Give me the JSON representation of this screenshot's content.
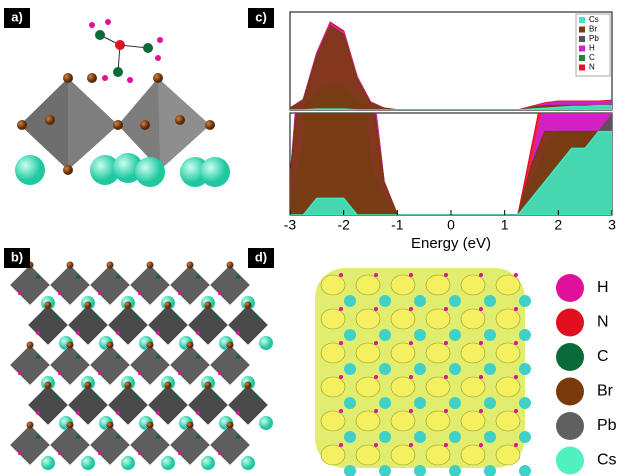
{
  "panels": {
    "a": "a)",
    "b": "b)",
    "c": "c)",
    "d": "d)"
  },
  "chart_data": {
    "type": "area",
    "xlabel": "Energy (eV)",
    "x": [
      -3,
      -2.75,
      -2.5,
      -2.25,
      -2,
      -1.75,
      -1.5,
      -1.25,
      -1,
      -0.75,
      -0.5,
      -0.25,
      0,
      0.25,
      0.5,
      0.75,
      1,
      1.25,
      1.5,
      1.75,
      2,
      2.25,
      2.5,
      2.75,
      3
    ],
    "xlim": [
      -3,
      3
    ],
    "xticks": [
      -3,
      -2,
      -1,
      0,
      1,
      2,
      3
    ],
    "ylim": [
      0,
      1.05
    ],
    "y2lim": [
      0,
      0.06
    ],
    "series": [
      {
        "name": "Cs",
        "color": "#40e8c0",
        "values": [
          0,
          0,
          0.01,
          0.01,
          0.01,
          0,
          0,
          0,
          0,
          0,
          0,
          0,
          0,
          0,
          0,
          0,
          0,
          0,
          0.01,
          0.02,
          0.03,
          0.04,
          0.04,
          0.05,
          0.05
        ]
      },
      {
        "name": "Br",
        "color": "#7a3a0c",
        "values": [
          0.02,
          0.11,
          0.62,
          0.96,
          0.86,
          0.35,
          0.08,
          0.02,
          0,
          0,
          0,
          0,
          0,
          0,
          0,
          0,
          0,
          0,
          0.03,
          0.05,
          0.05,
          0.05,
          0.05,
          0.05,
          0.05
        ]
      },
      {
        "name": "Pb",
        "color": "#555555",
        "values": [
          0.01,
          0.04,
          0.2,
          0.3,
          0.28,
          0.12,
          0.03,
          0.01,
          0,
          0,
          0,
          0,
          0,
          0,
          0,
          0,
          0,
          0,
          0.02,
          0.04,
          0.05,
          0.05,
          0.05,
          0.05,
          0.06
        ]
      },
      {
        "name": "H",
        "color": "#d020d0",
        "values": [
          0.02,
          0.12,
          0.64,
          0.98,
          0.88,
          0.37,
          0.09,
          0.02,
          0,
          0,
          0,
          0,
          0,
          0,
          0,
          0,
          0,
          0,
          0.03,
          0.07,
          0.09,
          0.09,
          0.09,
          0.09,
          0.1
        ]
      },
      {
        "name": "C",
        "color": "#1a8a3a",
        "values": [
          0,
          0.01,
          0.03,
          0.05,
          0.05,
          0.02,
          0.01,
          0,
          0,
          0,
          0,
          0,
          0,
          0,
          0,
          0,
          0,
          0,
          0.01,
          0.02,
          0.02,
          0.03,
          0.03,
          0.03,
          0.04
        ]
      },
      {
        "name": "N",
        "color": "#e8102a",
        "values": [
          0.02,
          0.12,
          0.65,
          1.0,
          0.9,
          0.38,
          0.09,
          0.02,
          0,
          0,
          0,
          0,
          0,
          0,
          0,
          0,
          0,
          0,
          0.04,
          0.08,
          0.1,
          0.1,
          0.1,
          0.1,
          0.11
        ]
      }
    ]
  },
  "element_legend": [
    {
      "label": "H",
      "color": "#e0109a"
    },
    {
      "label": "N",
      "color": "#e0101e"
    },
    {
      "label": "C",
      "color": "#0a6a3a"
    },
    {
      "label": "Br",
      "color": "#7a3a0c"
    },
    {
      "label": "Pb",
      "color": "#606060"
    },
    {
      "label": "Cs",
      "color": "#50f0c0"
    }
  ]
}
